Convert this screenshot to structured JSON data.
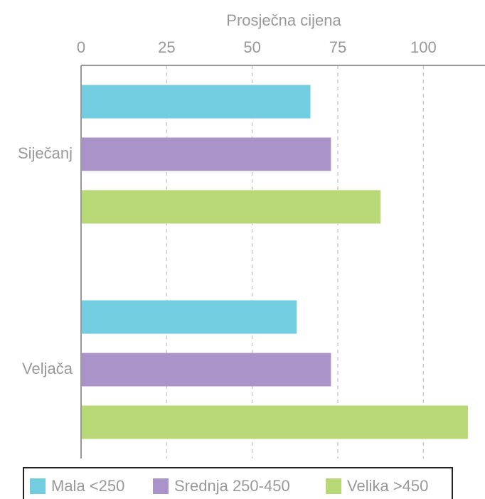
{
  "chart_data": {
    "type": "barh",
    "x_label": "Prosječna cijena",
    "categories": [
      "Siječanj",
      "Veljača"
    ],
    "series": [
      {
        "name": "Mala <250",
        "color": "#72cde0",
        "values": [
          67,
          63
        ]
      },
      {
        "name": "Srednja 250-450",
        "color": "#a993c9",
        "values": [
          73,
          73
        ]
      },
      {
        "name": "Velika >450",
        "color": "#b8d877",
        "values": [
          87.5,
          113
        ]
      }
    ],
    "xlim": [
      0,
      118
    ],
    "xticks": [
      0,
      25,
      50,
      75,
      100
    ],
    "grid": true,
    "legend": "bottom"
  }
}
